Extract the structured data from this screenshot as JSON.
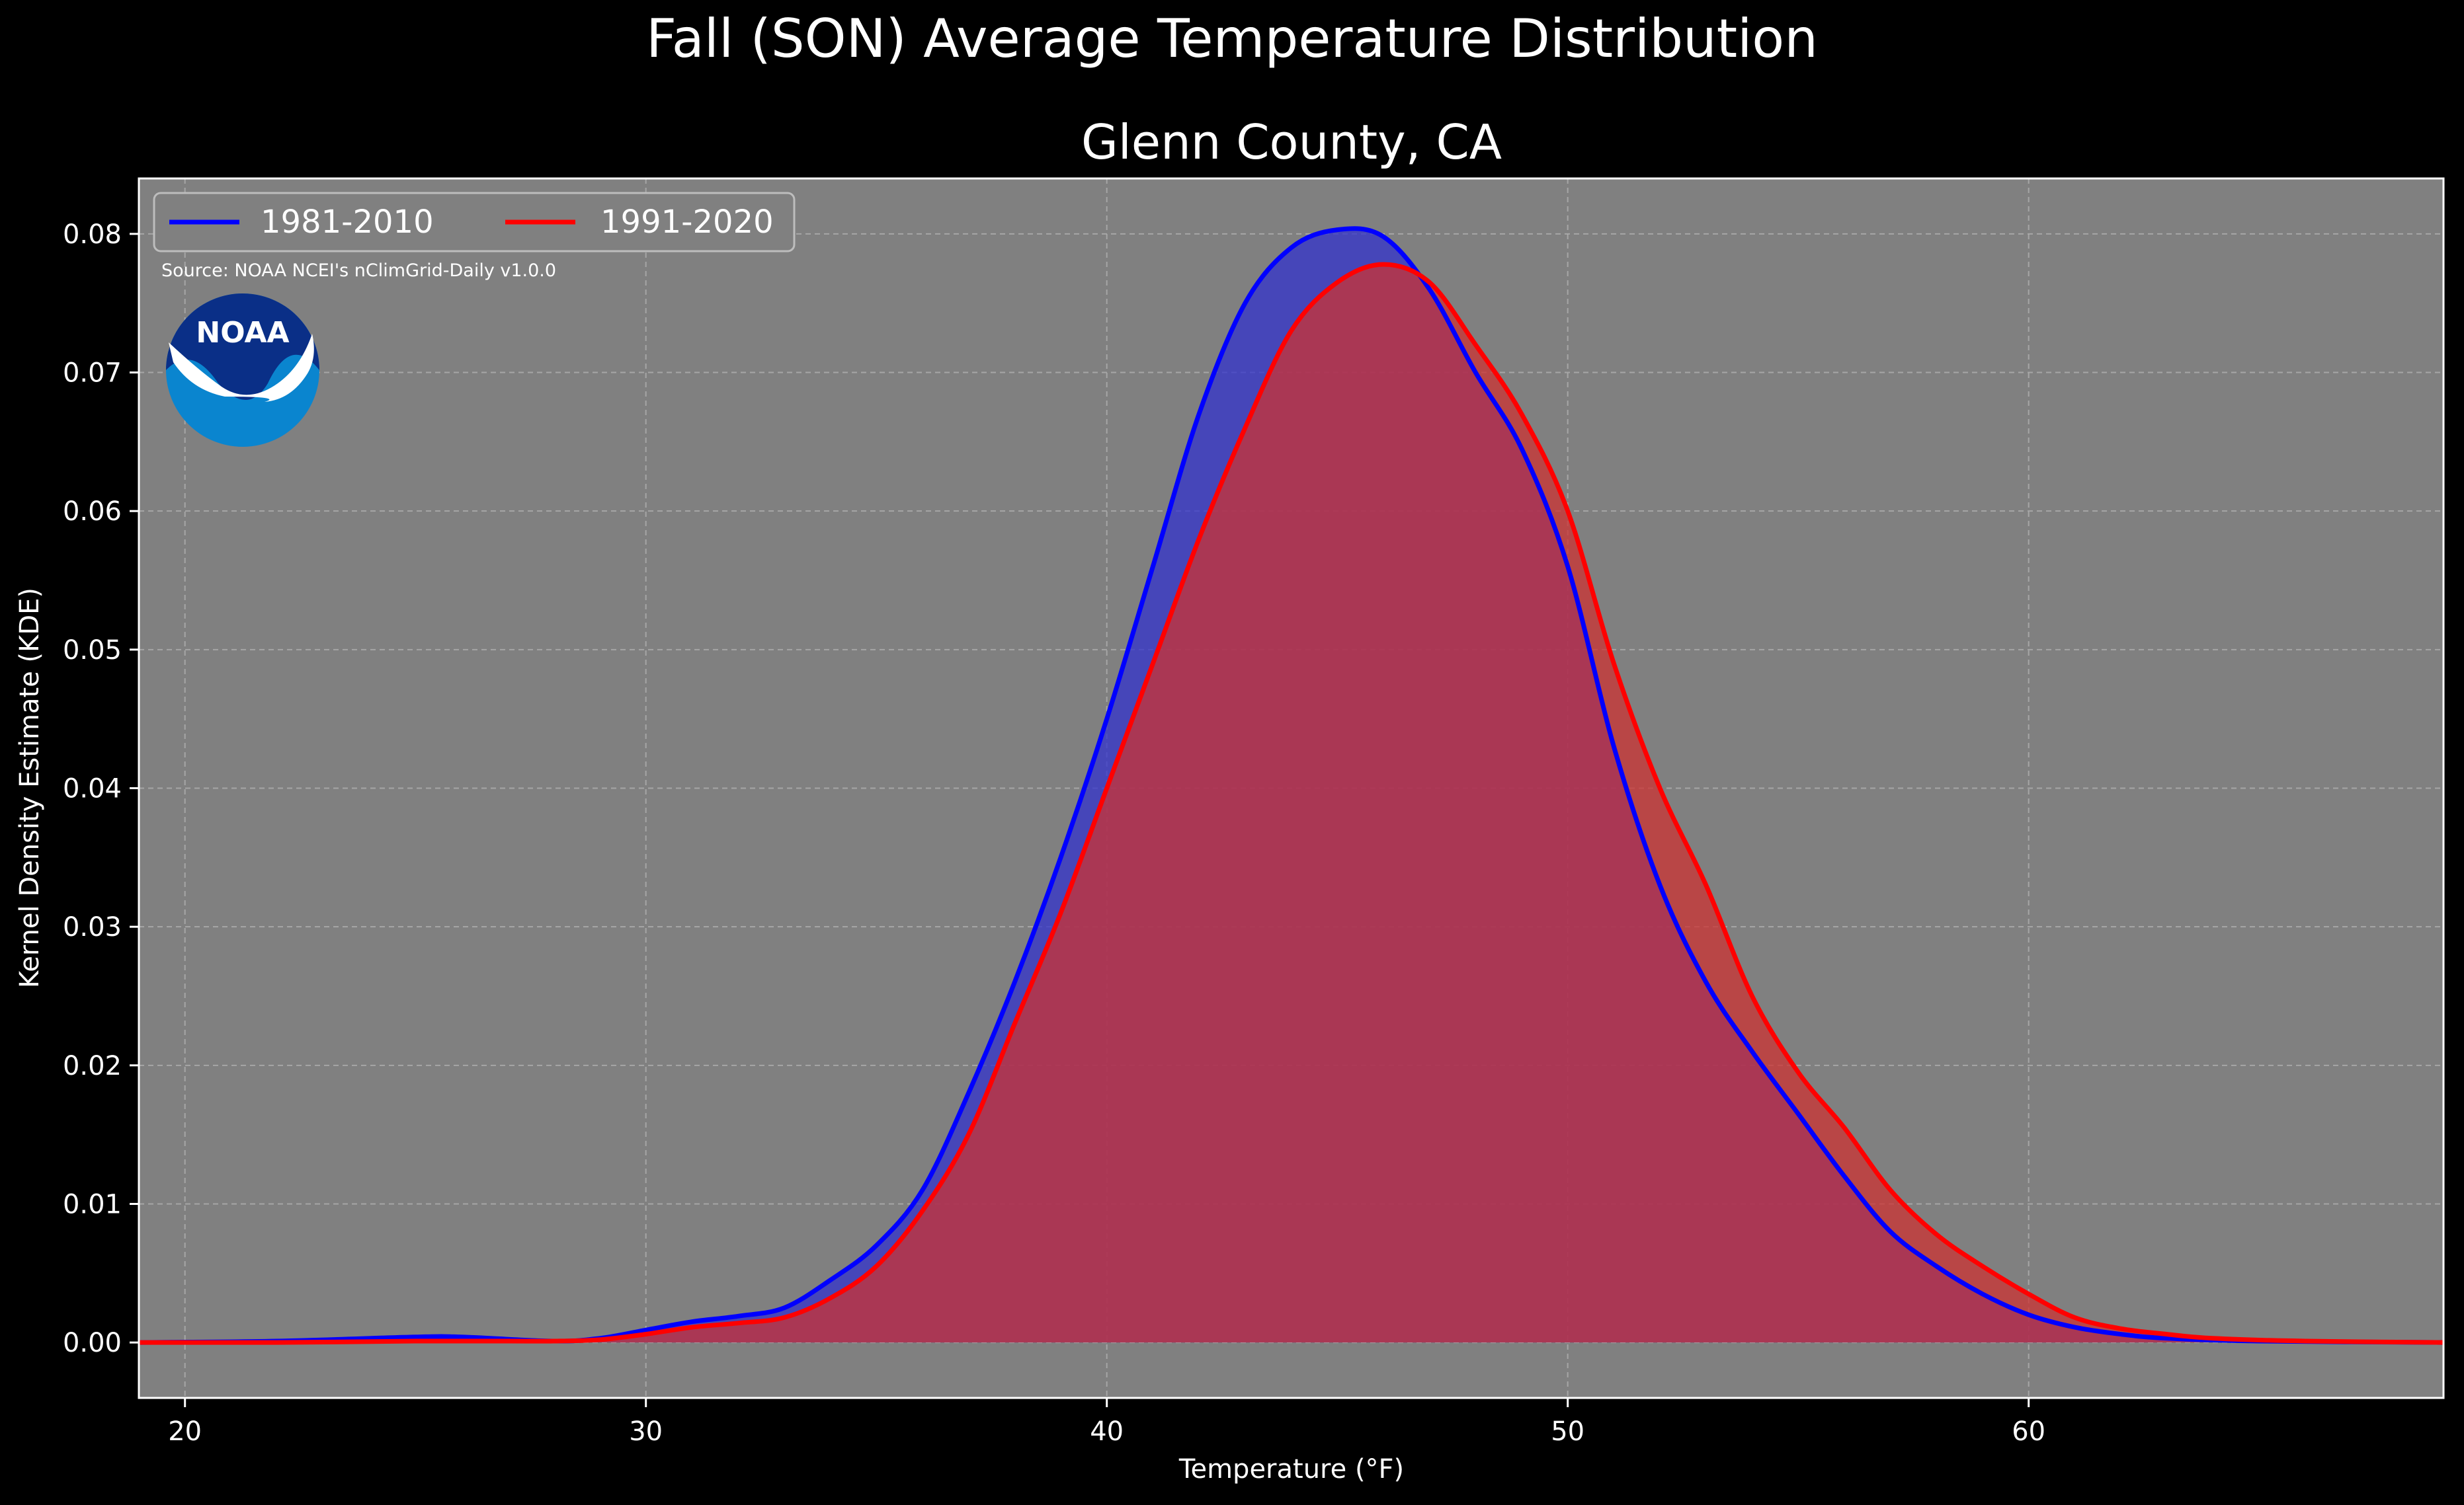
{
  "chart_data": {
    "type": "area",
    "title": "Fall (SON) Average Temperature Distribution",
    "subtitle": "Glenn County, CA",
    "xlabel": "Temperature (°F)",
    "ylabel": "Kernel Density Estimate (KDE)",
    "source": "Source: NOAA NCEI's nClimGrid-Daily v1.0.0",
    "logo_text": "NOAA",
    "xlim": [
      19,
      69
    ],
    "ylim": [
      -0.004,
      0.084
    ],
    "x_ticks": [
      20,
      30,
      40,
      50,
      60
    ],
    "y_ticks": [
      0.0,
      0.01,
      0.02,
      0.03,
      0.04,
      0.05,
      0.06,
      0.07,
      0.08
    ],
    "x_tick_labels": [
      "20",
      "30",
      "40",
      "50",
      "60"
    ],
    "y_tick_labels": [
      "0.00",
      "0.01",
      "0.02",
      "0.03",
      "0.04",
      "0.05",
      "0.06",
      "0.07",
      "0.08"
    ],
    "grid": true,
    "legend_position": "top-left",
    "background_color": "#000000",
    "plot_background": "#808080",
    "series": [
      {
        "name": "1981-2010",
        "color": "#0000ff",
        "fill": "#3333cc",
        "points": [
          [
            19,
            0.0
          ],
          [
            22,
            0.0001
          ],
          [
            25,
            0.0004
          ],
          [
            26,
            0.0004
          ],
          [
            28,
            0.0001
          ],
          [
            29,
            0.0003
          ],
          [
            30,
            0.0009
          ],
          [
            31,
            0.0015
          ],
          [
            32,
            0.0019
          ],
          [
            33,
            0.0025
          ],
          [
            34,
            0.0045
          ],
          [
            35,
            0.007
          ],
          [
            36,
            0.011
          ],
          [
            37,
            0.018
          ],
          [
            38,
            0.026
          ],
          [
            39,
            0.035
          ],
          [
            40,
            0.045
          ],
          [
            41,
            0.056
          ],
          [
            42,
            0.067
          ],
          [
            43,
            0.075
          ],
          [
            44,
            0.079
          ],
          [
            45,
            0.0803
          ],
          [
            46,
            0.0798
          ],
          [
            47,
            0.076
          ],
          [
            48,
            0.07
          ],
          [
            49,
            0.0645
          ],
          [
            50,
            0.056
          ],
          [
            51,
            0.043
          ],
          [
            52,
            0.033
          ],
          [
            53,
            0.026
          ],
          [
            54,
            0.021
          ],
          [
            55,
            0.0165
          ],
          [
            56,
            0.012
          ],
          [
            57,
            0.008
          ],
          [
            58,
            0.0055
          ],
          [
            59,
            0.0035
          ],
          [
            60,
            0.002
          ],
          [
            61,
            0.0011
          ],
          [
            62,
            0.0006
          ],
          [
            63,
            0.0003
          ],
          [
            65,
            0.0001
          ],
          [
            69,
            0.0
          ]
        ]
      },
      {
        "name": "1991-2020",
        "color": "#ff0000",
        "fill": "#cc3333",
        "points": [
          [
            19,
            0.0
          ],
          [
            22,
            0.0
          ],
          [
            25,
            0.0001
          ],
          [
            27,
            0.0001
          ],
          [
            28,
            0.0001
          ],
          [
            29,
            0.0002
          ],
          [
            30,
            0.0006
          ],
          [
            31,
            0.0011
          ],
          [
            32,
            0.0014
          ],
          [
            33,
            0.0018
          ],
          [
            34,
            0.0032
          ],
          [
            35,
            0.0055
          ],
          [
            36,
            0.0095
          ],
          [
            37,
            0.015
          ],
          [
            38,
            0.023
          ],
          [
            39,
            0.031
          ],
          [
            40,
            0.04
          ],
          [
            41,
            0.049
          ],
          [
            42,
            0.058
          ],
          [
            43,
            0.066
          ],
          [
            44,
            0.073
          ],
          [
            45,
            0.0765
          ],
          [
            46,
            0.0778
          ],
          [
            47,
            0.0765
          ],
          [
            48,
            0.072
          ],
          [
            49,
            0.067
          ],
          [
            50,
            0.06
          ],
          [
            51,
            0.049
          ],
          [
            52,
            0.04
          ],
          [
            53,
            0.033
          ],
          [
            54,
            0.025
          ],
          [
            55,
            0.0195
          ],
          [
            56,
            0.0155
          ],
          [
            57,
            0.011
          ],
          [
            58,
            0.0078
          ],
          [
            59,
            0.0055
          ],
          [
            60,
            0.0035
          ],
          [
            61,
            0.0018
          ],
          [
            62,
            0.001
          ],
          [
            63,
            0.0006
          ],
          [
            64,
            0.0003
          ],
          [
            66,
            0.0001
          ],
          [
            69,
            0.0
          ]
        ]
      }
    ]
  }
}
